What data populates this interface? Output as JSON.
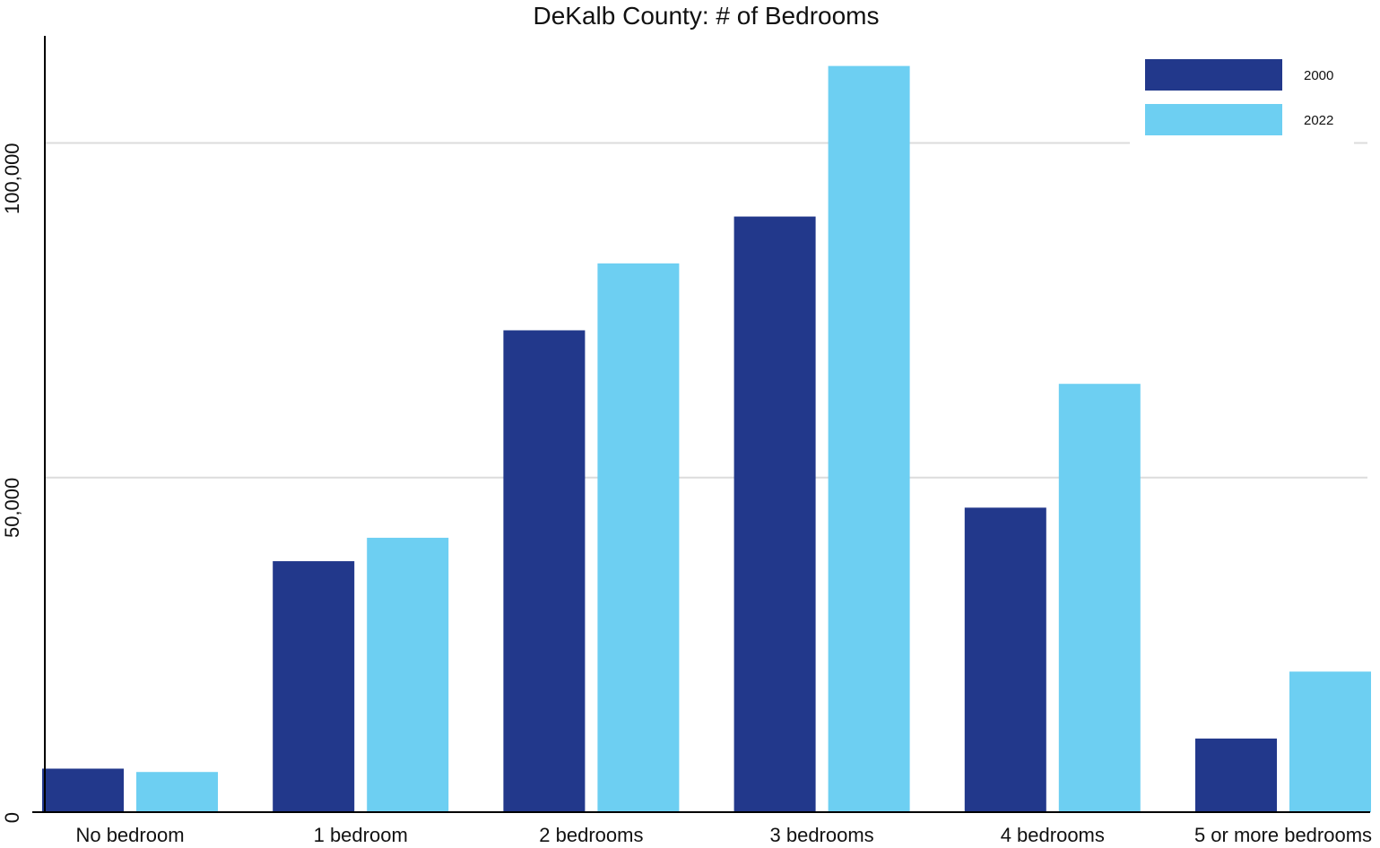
{
  "chart_data": {
    "type": "bar",
    "title": "DeKalb County: # of Bedrooms",
    "xlabel": "",
    "ylabel": "",
    "categories": [
      "No bedroom",
      "1 bedroom",
      "2 bedrooms",
      "3 bedrooms",
      "4 bedrooms",
      "5 or more bedrooms"
    ],
    "series": [
      {
        "name": "2000",
        "color": "#22388b",
        "values": [
          6500,
          37500,
          72000,
          89000,
          45500,
          11000
        ]
      },
      {
        "name": "2022",
        "color": "#6dcff2",
        "values": [
          6000,
          41000,
          82000,
          111500,
          64000,
          21000
        ]
      }
    ],
    "ylim": [
      0,
      116000
    ],
    "yticks": [
      {
        "value": 0,
        "label": "0"
      },
      {
        "value": 50000,
        "label": "50,000"
      },
      {
        "value": 100000,
        "label": "100,000"
      }
    ],
    "grid": true,
    "legend_position": "top-right"
  }
}
